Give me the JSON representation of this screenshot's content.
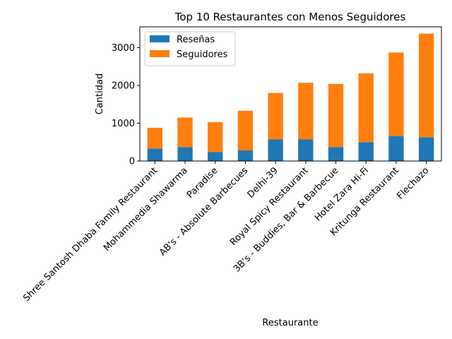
{
  "chart_data": {
    "type": "bar",
    "stacked": true,
    "title": "Top 10 Restaurantes con Menos Seguidores",
    "xlabel": "Restaurante",
    "ylabel": "Cantidad",
    "ylim": [
      0,
      3550
    ],
    "yticks": [
      0,
      1000,
      2000,
      3000
    ],
    "yticklabels": [
      "0",
      "1000",
      "2000",
      "3000"
    ],
    "grid": false,
    "legend_position": "upper-left",
    "categories": [
      "Shree Santosh Dhaba Family Restaurant",
      "Mohammedia Shawarma",
      "Paradise",
      "AB's - Absolute Barbecues",
      "Delhi-39",
      "Royal Spicy Restaurant",
      "3B's - Buddies, Bar & Barbecue",
      "Hotel Zara Hi-Fi",
      "Kritunga Restaurant",
      "Flechazo"
    ],
    "series": [
      {
        "name": "Reseñas",
        "color": "#1f77b4",
        "values": [
          330,
          370,
          240,
          280,
          570,
          570,
          370,
          500,
          660,
          630
        ]
      },
      {
        "name": "Seguidores",
        "color": "#ff7f0e",
        "values": [
          550,
          780,
          790,
          1050,
          1230,
          1500,
          1670,
          1820,
          2210,
          2740
        ]
      }
    ]
  }
}
